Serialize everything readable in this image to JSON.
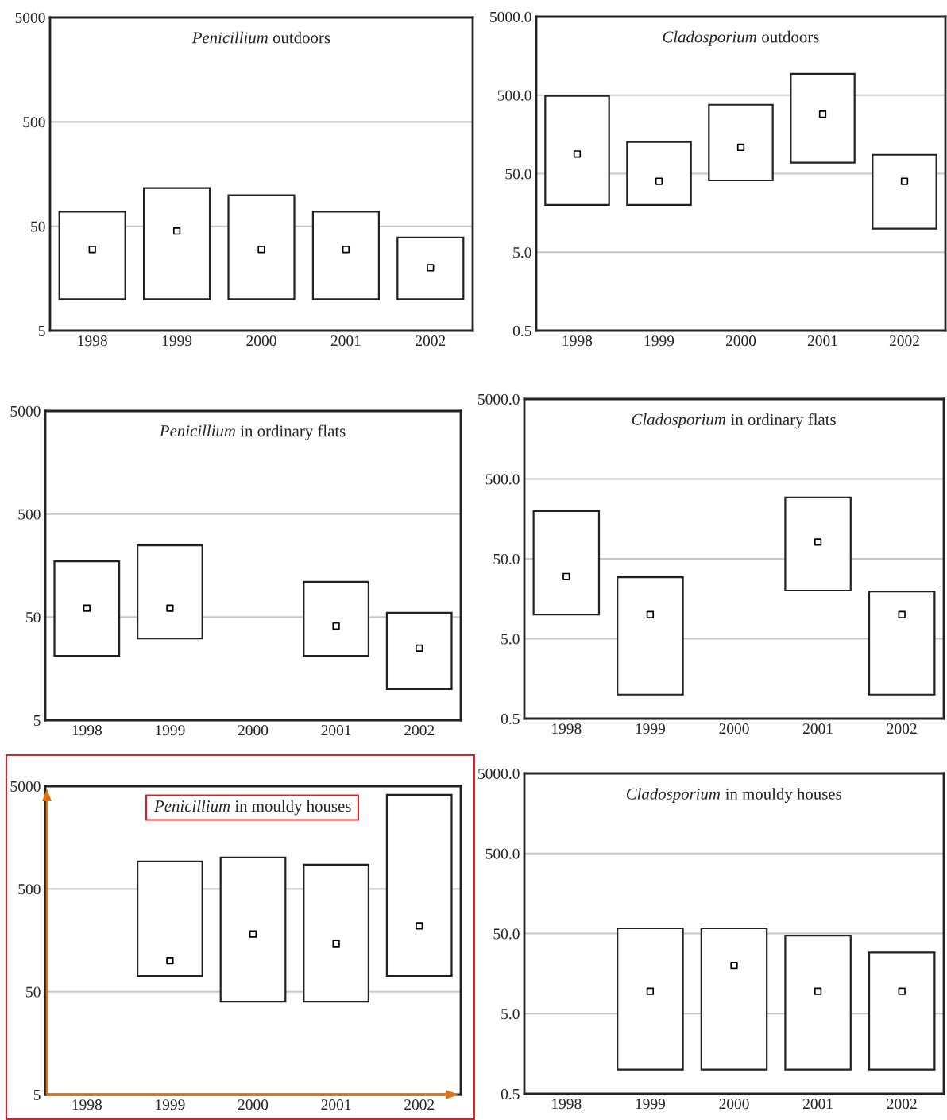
{
  "chart_data": [
    {
      "type": "bar",
      "title": "Penicillium outdoors",
      "categories": [
        "1998",
        "1999",
        "2000",
        "2001",
        "2002"
      ],
      "log": true,
      "grid": "y",
      "ylim": [
        5,
        5000
      ],
      "yticks": [
        5,
        50,
        500,
        5000
      ],
      "series": [
        {
          "color": "#ffffff",
          "base": [
            10,
            10,
            10,
            10,
            10
          ],
          "values": [
            59,
            106,
            89,
            59,
            29
          ]
        },
        {
          "type": "scatter",
          "marker": "square",
          "color": "#000000",
          "values": [
            30,
            45,
            30,
            30,
            20
          ]
        }
      ]
    },
    {
      "type": "bar",
      "title": "Cladosporium outdoors",
      "categories": [
        "1998",
        "1999",
        "2000",
        "2001",
        "2002"
      ],
      "log": true,
      "grid": "y",
      "ylim": [
        0.5,
        5000
      ],
      "yticks": [
        {
          "value": 0.5,
          "label": "0.5"
        },
        {
          "value": 5,
          "label": "5.0"
        },
        {
          "value": 50,
          "label": "50.0"
        },
        {
          "value": 500,
          "label": "500.0"
        },
        {
          "value": 5000,
          "label": "5000.0"
        }
      ],
      "series": [
        {
          "color": "#ffffff",
          "base": [
            20,
            20,
            41,
            69,
            10
          ],
          "values": [
            470,
            107,
            337,
            868,
            77
          ]
        },
        {
          "type": "scatter",
          "marker": "square",
          "color": "#000000",
          "values": [
            89,
            40,
            108,
            286,
            40
          ]
        }
      ]
    },
    {
      "type": "bar",
      "title": "Penicillium in ordinary flats",
      "categories": [
        "1998",
        "1999",
        "2000",
        "2001",
        "2002"
      ],
      "log": true,
      "grid": "y",
      "ylim": [
        5,
        5000
      ],
      "yticks": [
        5,
        50,
        500,
        5000
      ],
      "series": [
        {
          "color": "#ffffff",
          "base": [
            21,
            31,
            null,
            21,
            10
          ],
          "values": [
            153,
            217,
            null,
            89,
            45
          ]
        },
        {
          "type": "scatter",
          "marker": "square",
          "color": "#000000",
          "values": [
            61,
            61,
            null,
            41,
            25
          ]
        }
      ]
    },
    {
      "type": "bar",
      "title": "Cladosporium in ordinary flats",
      "categories": [
        "1998",
        "1999",
        "2000",
        "2001",
        "2002"
      ],
      "log": true,
      "grid": "y",
      "ylim": [
        0.5,
        5000
      ],
      "yticks": [
        {
          "value": 0.5,
          "label": "0.5"
        },
        {
          "value": 5,
          "label": "5.0"
        },
        {
          "value": 50,
          "label": "50.0"
        },
        {
          "value": 500,
          "label": "500.0"
        },
        {
          "value": 5000,
          "label": "5000.0"
        }
      ],
      "series": [
        {
          "color": "#ffffff",
          "base": [
            10,
            1,
            null,
            20,
            1
          ],
          "values": [
            188,
            28.5,
            null,
            272,
            18.5
          ]
        },
        {
          "type": "scatter",
          "marker": "square",
          "color": "#000000",
          "values": [
            30,
            10,
            null,
            81,
            10
          ]
        }
      ]
    },
    {
      "type": "bar",
      "title": "Penicillium in mouldy houses",
      "categories": [
        "1998",
        "1999",
        "2000",
        "2001",
        "2002"
      ],
      "log": true,
      "grid": "y",
      "ylim": [
        5,
        5000
      ],
      "yticks": [
        5,
        50,
        500,
        5000
      ],
      "series": [
        {
          "color": "#ffffff",
          "base": [
            null,
            71,
            40,
            40,
            71
          ],
          "values": [
            null,
            852,
            970,
            819,
            4049
          ]
        },
        {
          "type": "scatter",
          "marker": "square",
          "color": "#000000",
          "values": [
            null,
            100,
            182,
            147,
            218
          ]
        }
      ]
    },
    {
      "type": "bar",
      "title": "Cladosporium in mouldy houses",
      "categories": [
        "1998",
        "1999",
        "2000",
        "2001",
        "2002"
      ],
      "log": true,
      "grid": "y",
      "ylim": [
        0.5,
        5000
      ],
      "yticks": [
        {
          "value": 0.5,
          "label": "0.5"
        },
        {
          "value": 5,
          "label": "5.0"
        },
        {
          "value": 50,
          "label": "50.0"
        },
        {
          "value": 500,
          "label": "500.0"
        },
        {
          "value": 5000,
          "label": "5000.0"
        }
      ],
      "series": [
        {
          "color": "#ffffff",
          "base": [
            null,
            1,
            1,
            1,
            1
          ],
          "values": [
            null,
            57,
            57,
            46,
            28
          ]
        },
        {
          "type": "scatter",
          "marker": "square",
          "color": "#000000",
          "values": [
            null,
            9.5,
            20,
            9.5,
            9.5
          ]
        }
      ]
    }
  ]
}
